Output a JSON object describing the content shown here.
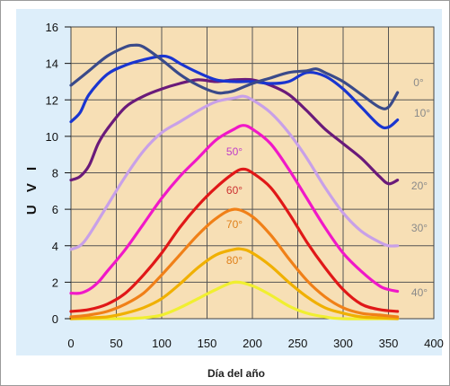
{
  "chart_data": {
    "type": "line",
    "title": "",
    "xlabel": "Día del año",
    "ylabel": "U V I",
    "xlim": [
      0,
      400
    ],
    "ylim": [
      0,
      16
    ],
    "xticks": [
      "0",
      "50",
      "100",
      "150",
      "200",
      "250",
      "300",
      "350",
      "400"
    ],
    "yticks": [
      "0",
      "2",
      "4",
      "6",
      "8",
      "10",
      "12",
      "14",
      "16"
    ],
    "grid": true,
    "colors": {
      "plot_bg": "#f7dfb5",
      "panel_bg": "#ddeefa",
      "grid": "#555555",
      "label": "#8a8a8a"
    },
    "series": [
      {
        "name": "0°",
        "color": "#3a4a8a",
        "label_color": "#8a8a8a",
        "x": [
          0,
          20,
          40,
          60,
          70,
          80,
          100,
          120,
          140,
          160,
          170,
          180,
          200,
          220,
          240,
          260,
          270,
          280,
          300,
          320,
          340,
          350,
          360
        ],
        "y": [
          12.8,
          13.6,
          14.4,
          14.9,
          15.0,
          14.9,
          14.2,
          13.4,
          12.8,
          12.4,
          12.4,
          12.5,
          12.9,
          13.2,
          13.5,
          13.6,
          13.7,
          13.5,
          13.0,
          12.3,
          11.6,
          11.6,
          12.4
        ]
      },
      {
        "name": "10°",
        "color": "#1a35d0",
        "label_color": "#8a8a8a",
        "x": [
          0,
          10,
          20,
          40,
          60,
          80,
          100,
          110,
          120,
          140,
          160,
          180,
          200,
          220,
          240,
          260,
          280,
          300,
          320,
          340,
          350,
          360
        ],
        "y": [
          10.8,
          11.3,
          12.3,
          13.4,
          13.9,
          14.2,
          14.4,
          14.3,
          14.0,
          13.5,
          13.1,
          13.0,
          13.0,
          12.9,
          13.0,
          13.5,
          13.3,
          12.6,
          11.6,
          10.6,
          10.5,
          10.9
        ]
      },
      {
        "name": "20°",
        "color": "#6a1a7a",
        "label_color": "#8a8a8a",
        "x": [
          0,
          10,
          20,
          30,
          40,
          60,
          80,
          100,
          120,
          140,
          160,
          180,
          200,
          220,
          240,
          260,
          280,
          300,
          320,
          340,
          350,
          360
        ],
        "y": [
          7.6,
          7.8,
          8.4,
          9.6,
          10.4,
          11.6,
          12.2,
          12.6,
          12.9,
          13.1,
          13.0,
          13.1,
          13.1,
          12.8,
          12.3,
          11.4,
          10.4,
          9.6,
          8.8,
          7.8,
          7.4,
          7.6
        ]
      },
      {
        "name": "30°",
        "color": "#c8a0e8",
        "label_color": "#8a8a8a",
        "x": [
          0,
          10,
          20,
          40,
          60,
          80,
          100,
          120,
          140,
          160,
          180,
          190,
          200,
          220,
          240,
          260,
          280,
          300,
          320,
          340,
          350,
          360
        ],
        "y": [
          3.8,
          4.0,
          4.6,
          6.2,
          7.8,
          9.2,
          10.2,
          10.8,
          11.4,
          11.9,
          12.1,
          12.2,
          12.0,
          11.3,
          10.2,
          8.8,
          7.2,
          5.8,
          4.8,
          4.2,
          4.0,
          4.0
        ]
      },
      {
        "name": "40°",
        "color": "#f018c8",
        "label_color": "#8a8a8a",
        "x": [
          0,
          10,
          20,
          30,
          40,
          60,
          80,
          100,
          120,
          140,
          160,
          180,
          190,
          200,
          220,
          240,
          260,
          280,
          300,
          320,
          340,
          350,
          360
        ],
        "y": [
          1.4,
          1.4,
          1.6,
          2.0,
          2.6,
          3.8,
          5.2,
          6.6,
          7.8,
          8.8,
          9.8,
          10.4,
          10.6,
          10.4,
          9.6,
          8.2,
          6.6,
          5.0,
          3.6,
          2.6,
          1.8,
          1.6,
          1.5
        ]
      },
      {
        "name": "50°",
        "color": "#e01818",
        "label_color": "#c03cc8",
        "x": [
          0,
          20,
          40,
          60,
          80,
          100,
          120,
          140,
          160,
          180,
          190,
          200,
          220,
          240,
          260,
          280,
          300,
          320,
          340,
          360
        ],
        "y": [
          0.4,
          0.5,
          0.8,
          1.4,
          2.4,
          3.6,
          5.0,
          6.2,
          7.2,
          8.0,
          8.2,
          8.0,
          7.2,
          5.8,
          4.2,
          2.8,
          1.6,
          0.8,
          0.5,
          0.4
        ]
      },
      {
        "name": "60°",
        "color": "#f08018",
        "label_color": "#cc3030",
        "x": [
          0,
          20,
          40,
          60,
          80,
          100,
          120,
          140,
          160,
          180,
          200,
          220,
          240,
          260,
          280,
          300,
          320,
          340,
          360
        ],
        "y": [
          0.1,
          0.2,
          0.4,
          0.8,
          1.4,
          2.4,
          3.5,
          4.6,
          5.5,
          6.0,
          5.6,
          4.6,
          3.3,
          2.1,
          1.2,
          0.6,
          0.3,
          0.2,
          0.1
        ]
      },
      {
        "name": "70°",
        "color": "#f0b000",
        "label_color": "#e0801a",
        "x": [
          0,
          20,
          40,
          60,
          80,
          100,
          120,
          140,
          160,
          180,
          190,
          200,
          220,
          240,
          260,
          280,
          300,
          320,
          340,
          360
        ],
        "y": [
          0.0,
          0.05,
          0.1,
          0.3,
          0.6,
          1.1,
          1.9,
          2.8,
          3.5,
          3.8,
          3.8,
          3.6,
          2.9,
          2.0,
          1.2,
          0.6,
          0.3,
          0.1,
          0.05,
          0.0
        ]
      },
      {
        "name": "80°",
        "color": "#f0ef30",
        "label_color": "#e0801a",
        "x": [
          0,
          60,
          80,
          100,
          120,
          140,
          160,
          180,
          200,
          220,
          240,
          260,
          280,
          300,
          360
        ],
        "y": [
          0.0,
          0.0,
          0.05,
          0.2,
          0.6,
          1.1,
          1.6,
          2.0,
          1.8,
          1.3,
          0.7,
          0.3,
          0.1,
          0.0,
          0.0
        ]
      }
    ]
  }
}
